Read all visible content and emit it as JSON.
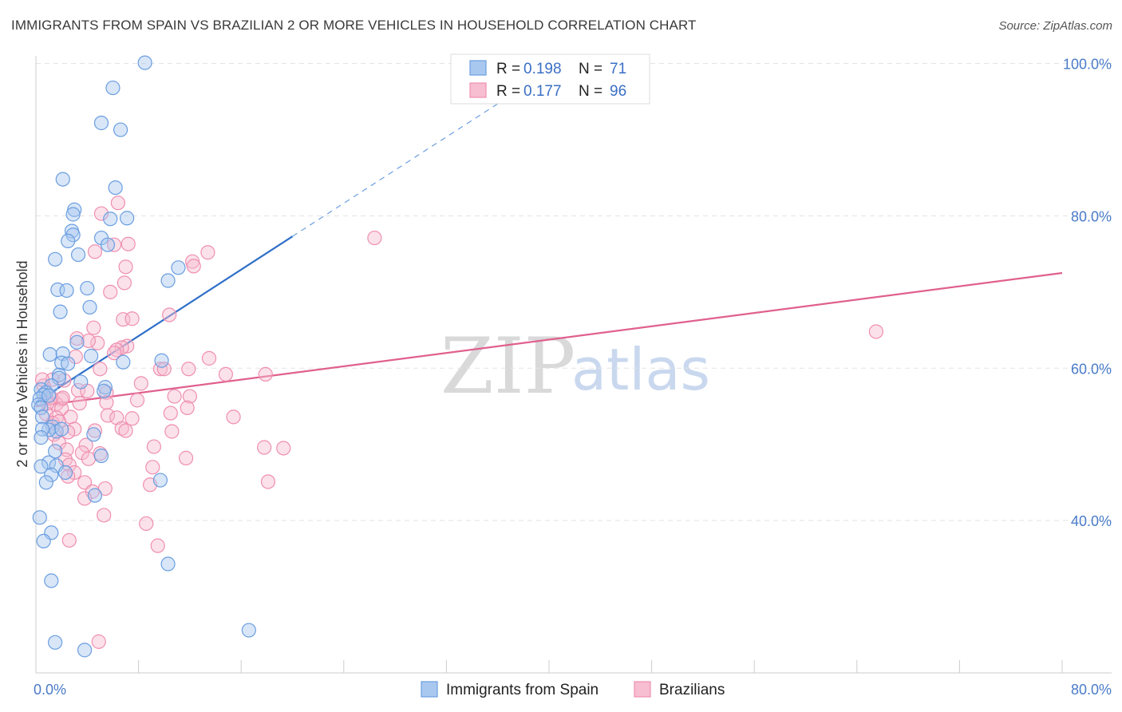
{
  "title": "IMMIGRANTS FROM SPAIN VS BRAZILIAN 2 OR MORE VEHICLES IN HOUSEHOLD CORRELATION CHART",
  "source": "Source: ZipAtlas.com",
  "watermark": {
    "zip": "ZIP",
    "atlas": "atlas"
  },
  "colors": {
    "spain_fill": "#a9c8f0",
    "spain_stroke": "#6b9ee0",
    "spain_line": "#2f6fc8",
    "brazil_fill": "#f7bdd0",
    "brazil_stroke": "#ef8fb0",
    "brazil_line": "#e0608e",
    "grid": "#e3e3e3",
    "axis_text": "#4a7bc8"
  },
  "legend": {
    "rows": [
      {
        "r_label": "R =",
        "r_value": "0.198",
        "n_label": "N =",
        "n_value": "71"
      },
      {
        "r_label": "R =",
        "r_value": "0.177",
        "n_label": "N =",
        "n_value": "96"
      }
    ]
  },
  "bottom_legend": [
    "Immigrants from Spain",
    "Brazilians"
  ],
  "chart_data": {
    "type": "scatter",
    "title": "IMMIGRANTS FROM SPAIN VS BRAZILIAN 2 OR MORE VEHICLES IN HOUSEHOLD CORRELATION CHART",
    "xlabel": "",
    "ylabel": "2 or more Vehicles in Household",
    "xlim": [
      0,
      80
    ],
    "ylim": [
      20,
      101
    ],
    "x_tick_labels": [
      "0.0%",
      "80.0%"
    ],
    "y_ticks": [
      40,
      60,
      80,
      100
    ],
    "y_tick_labels": [
      "40.0%",
      "60.0%",
      "80.0%",
      "100.0%"
    ],
    "grid": true,
    "legend_position": "top-center",
    "series": [
      {
        "name": "Immigrants from Spain",
        "R": 0.198,
        "N": 71,
        "trend": {
          "x_start": 0.0,
          "y_start": 55.5,
          "x_solid_end": 20.0,
          "y_solid_end": 77.3,
          "x_dash_end": 37.0,
          "y_dash_end": 95.8
        },
        "points": [
          [
            8.5,
            100.1
          ],
          [
            6.0,
            96.8
          ],
          [
            5.1,
            92.2
          ],
          [
            6.6,
            91.3
          ],
          [
            2.1,
            84.8
          ],
          [
            6.2,
            83.7
          ],
          [
            3.0,
            80.8
          ],
          [
            2.9,
            80.2
          ],
          [
            5.8,
            79.6
          ],
          [
            7.1,
            79.7
          ],
          [
            2.8,
            78.0
          ],
          [
            2.9,
            77.5
          ],
          [
            2.5,
            76.7
          ],
          [
            5.1,
            77.1
          ],
          [
            5.6,
            76.2
          ],
          [
            3.3,
            74.9
          ],
          [
            1.5,
            74.3
          ],
          [
            11.1,
            73.2
          ],
          [
            10.3,
            71.5
          ],
          [
            1.7,
            70.3
          ],
          [
            2.4,
            70.2
          ],
          [
            4.0,
            70.5
          ],
          [
            4.2,
            68.0
          ],
          [
            1.9,
            67.4
          ],
          [
            3.2,
            63.4
          ],
          [
            1.1,
            61.8
          ],
          [
            2.1,
            61.9
          ],
          [
            4.3,
            61.6
          ],
          [
            6.8,
            60.8
          ],
          [
            9.8,
            61.0
          ],
          [
            2.0,
            60.7
          ],
          [
            2.5,
            60.6
          ],
          [
            1.8,
            59.1
          ],
          [
            1.8,
            58.7
          ],
          [
            3.5,
            58.2
          ],
          [
            1.2,
            57.7
          ],
          [
            5.4,
            57.5
          ],
          [
            0.4,
            57.2
          ],
          [
            5.3,
            57.0
          ],
          [
            0.8,
            56.8
          ],
          [
            0.6,
            56.5
          ],
          [
            0.3,
            56.0
          ],
          [
            1.0,
            56.4
          ],
          [
            0.2,
            55.2
          ],
          [
            0.4,
            54.8
          ],
          [
            0.5,
            53.6
          ],
          [
            1.3,
            52.3
          ],
          [
            1.6,
            51.7
          ],
          [
            1.0,
            51.9
          ],
          [
            0.5,
            52.0
          ],
          [
            2.0,
            52.0
          ],
          [
            4.5,
            51.3
          ],
          [
            0.4,
            50.9
          ],
          [
            1.5,
            49.1
          ],
          [
            1.0,
            47.6
          ],
          [
            0.4,
            47.1
          ],
          [
            1.6,
            47.2
          ],
          [
            5.1,
            48.5
          ],
          [
            1.2,
            46.0
          ],
          [
            2.3,
            46.3
          ],
          [
            0.8,
            45.0
          ],
          [
            9.7,
            45.3
          ],
          [
            4.6,
            43.3
          ],
          [
            0.3,
            40.4
          ],
          [
            1.2,
            38.4
          ],
          [
            0.6,
            37.3
          ],
          [
            10.3,
            34.3
          ],
          [
            1.2,
            32.1
          ],
          [
            16.6,
            25.6
          ],
          [
            1.5,
            24.0
          ],
          [
            3.8,
            23.0
          ]
        ]
      },
      {
        "name": "Brazilians",
        "R": 0.177,
        "N": 96,
        "trend": {
          "x_start": 0.0,
          "y_start": 55.0,
          "x_end": 80.0,
          "y_end": 72.5
        },
        "points": [
          [
            26.4,
            77.1
          ],
          [
            6.4,
            81.7
          ],
          [
            5.1,
            80.3
          ],
          [
            13.4,
            75.2
          ],
          [
            7.2,
            76.3
          ],
          [
            4.6,
            75.3
          ],
          [
            6.1,
            76.2
          ],
          [
            12.2,
            74.0
          ],
          [
            12.3,
            73.4
          ],
          [
            7.0,
            73.3
          ],
          [
            6.9,
            71.2
          ],
          [
            5.8,
            70.0
          ],
          [
            10.4,
            67.0
          ],
          [
            6.8,
            66.4
          ],
          [
            7.5,
            66.5
          ],
          [
            4.5,
            65.3
          ],
          [
            3.2,
            63.9
          ],
          [
            4.8,
            63.3
          ],
          [
            4.1,
            63.6
          ],
          [
            7.1,
            62.9
          ],
          [
            6.7,
            62.7
          ],
          [
            6.3,
            62.4
          ],
          [
            13.5,
            61.3
          ],
          [
            9.7,
            59.9
          ],
          [
            11.9,
            59.9
          ],
          [
            14.8,
            59.2
          ],
          [
            17.9,
            59.2
          ],
          [
            5.0,
            59.9
          ],
          [
            1.3,
            58.5
          ],
          [
            8.2,
            58.0
          ],
          [
            0.6,
            57.7
          ],
          [
            3.3,
            57.1
          ],
          [
            5.5,
            56.8
          ],
          [
            4.0,
            57.0
          ],
          [
            0.8,
            56.0
          ],
          [
            2.0,
            55.9
          ],
          [
            10.8,
            56.3
          ],
          [
            12.0,
            56.3
          ],
          [
            1.6,
            55.3
          ],
          [
            3.4,
            55.4
          ],
          [
            5.5,
            55.5
          ],
          [
            2.0,
            54.7
          ],
          [
            7.9,
            55.8
          ],
          [
            10.5,
            54.1
          ],
          [
            11.8,
            54.8
          ],
          [
            0.8,
            54.0
          ],
          [
            1.6,
            53.5
          ],
          [
            2.7,
            53.6
          ],
          [
            5.6,
            53.8
          ],
          [
            6.3,
            53.5
          ],
          [
            7.5,
            53.4
          ],
          [
            15.4,
            53.6
          ],
          [
            1.3,
            52.8
          ],
          [
            1.8,
            53.0
          ],
          [
            3.0,
            52.0
          ],
          [
            4.6,
            51.8
          ],
          [
            6.7,
            52.1
          ],
          [
            7.0,
            51.8
          ],
          [
            10.6,
            51.7
          ],
          [
            1.4,
            51.3
          ],
          [
            2.5,
            51.6
          ],
          [
            1.8,
            50.2
          ],
          [
            3.9,
            49.9
          ],
          [
            9.2,
            49.7
          ],
          [
            17.8,
            49.6
          ],
          [
            19.3,
            49.5
          ],
          [
            2.4,
            49.3
          ],
          [
            3.6,
            48.9
          ],
          [
            5.0,
            48.8
          ],
          [
            11.7,
            48.2
          ],
          [
            2.3,
            48.0
          ],
          [
            4.1,
            48.1
          ],
          [
            2.6,
            47.3
          ],
          [
            9.1,
            47.0
          ],
          [
            3.0,
            46.3
          ],
          [
            2.5,
            45.8
          ],
          [
            3.8,
            45.0
          ],
          [
            18.1,
            45.1
          ],
          [
            8.9,
            44.7
          ],
          [
            5.4,
            44.2
          ],
          [
            4.4,
            43.8
          ],
          [
            3.8,
            42.9
          ],
          [
            5.3,
            40.7
          ],
          [
            8.6,
            39.6
          ],
          [
            2.6,
            37.4
          ],
          [
            9.5,
            36.7
          ],
          [
            4.9,
            24.1
          ],
          [
            65.5,
            64.8
          ],
          [
            10.0,
            59.9
          ],
          [
            0.5,
            58.5
          ],
          [
            2.2,
            58.4
          ],
          [
            6.1,
            62.0
          ],
          [
            3.1,
            61.5
          ],
          [
            1.2,
            56.1
          ],
          [
            2.1,
            56.1
          ],
          [
            0.9,
            55.4
          ]
        ]
      }
    ]
  }
}
